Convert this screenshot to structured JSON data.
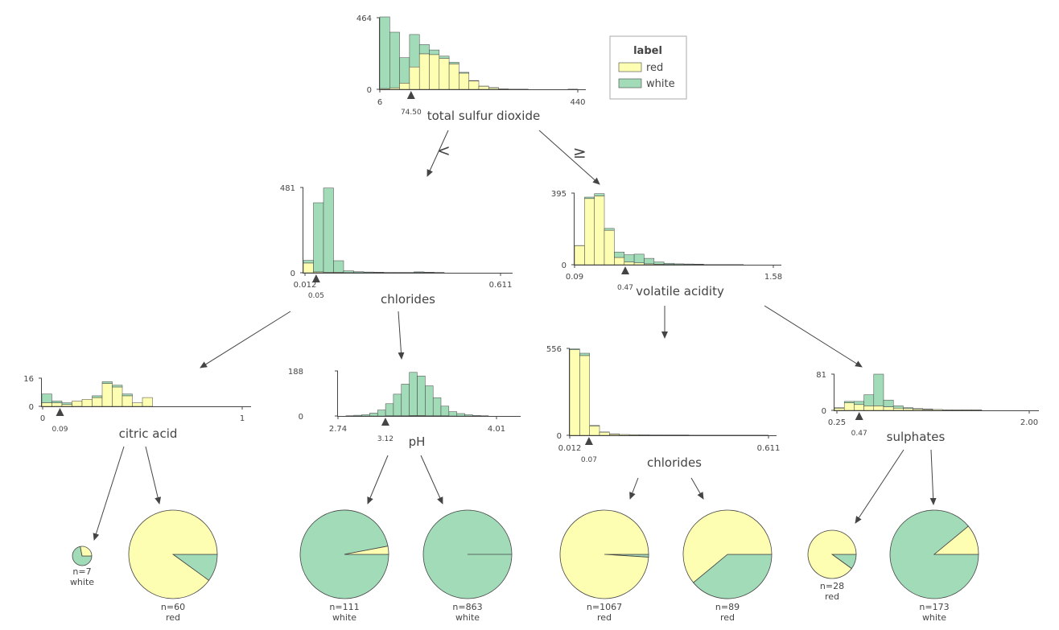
{
  "colors": {
    "red": "#fefeb2",
    "white": "#a2dbb8",
    "stroke": "#444444",
    "axis": "#444444"
  },
  "legend": {
    "title": "label",
    "items": [
      {
        "label": "red",
        "color": "#fefeb2"
      },
      {
        "label": "white",
        "color": "#a2dbb8"
      }
    ]
  },
  "edge_labels": {
    "left": "<",
    "right": "≥"
  },
  "chart_data": {
    "type": "decision-tree",
    "nodes": [
      {
        "id": "root",
        "feature": "total sulfur dioxide",
        "xmin": 6,
        "xmax": 440,
        "xmin_label": "6",
        "xmax_label": "440",
        "ymax": 464,
        "ymax_label": "464",
        "ymin_label": "0",
        "split": 74.5,
        "split_label": "74.50",
        "bins_white": [
          464,
          360,
          165,
          210,
          60,
          30,
          15,
          10,
          5,
          2,
          1,
          1,
          0,
          0,
          0,
          0,
          0,
          0,
          0,
          0
        ],
        "bins_red": [
          5,
          10,
          40,
          145,
          230,
          225,
          200,
          165,
          105,
          55,
          20,
          10,
          3,
          1,
          1,
          0,
          0,
          0,
          0,
          1
        ]
      },
      {
        "id": "l",
        "feature": "chlorides",
        "xmin": 0.012,
        "xmax": 0.611,
        "xmin_label": "0.012",
        "xmax_label": "0.611",
        "ymax": 481,
        "ymax_label": "481",
        "ymin_label": "0",
        "split": 0.05,
        "split_label": "0.05",
        "bins_white": [
          15,
          390,
          475,
          65,
          10,
          5,
          3,
          2,
          1,
          1,
          1,
          3,
          2,
          1,
          0,
          0,
          0,
          0,
          0,
          0
        ],
        "bins_red": [
          55,
          5,
          3,
          3,
          1,
          1,
          1,
          1,
          1,
          1,
          1,
          2,
          1,
          1,
          0,
          0,
          0,
          0,
          0,
          0
        ]
      },
      {
        "id": "r",
        "feature": "volatile acidity",
        "xmin": 0.09,
        "xmax": 1.58,
        "xmin_label": "0.09",
        "xmax_label": "1.58",
        "ymax": 395,
        "ymax_label": "395",
        "ymin_label": "0",
        "split": 0.47,
        "split_label": "0.47",
        "bins_white": [
          1,
          8,
          12,
          10,
          30,
          40,
          48,
          30,
          12,
          6,
          4,
          3,
          2,
          1,
          1,
          1,
          1,
          0,
          0,
          0
        ],
        "bins_red": [
          105,
          365,
          380,
          190,
          40,
          15,
          10,
          5,
          3,
          2,
          1,
          1,
          1,
          0,
          0,
          0,
          0,
          0,
          0,
          0
        ]
      },
      {
        "id": "ll",
        "feature": "citric acid",
        "xmin": 0,
        "xmax": 1,
        "xmin_label": "0",
        "xmax_label": "1",
        "ymax": 16,
        "ymax_label": "16",
        "ymin_label": "0",
        "split": 0.09,
        "split_label": "0.09",
        "bins_white": [
          5,
          1,
          1,
          0,
          0,
          1,
          1,
          1,
          1,
          0,
          0,
          0,
          0,
          0,
          0,
          0,
          0,
          0,
          0,
          0
        ],
        "bins_red": [
          2,
          2,
          1,
          3,
          4,
          5,
          13,
          11,
          6,
          2,
          5,
          0,
          0,
          0,
          0,
          0,
          0,
          0,
          0,
          0
        ]
      },
      {
        "id": "lr",
        "feature": "pH",
        "xmin": 2.74,
        "xmax": 4.01,
        "xmin_label": "2.74",
        "xmax_label": "4.01",
        "ymax": 188,
        "ymax_label": "188",
        "ymin_label": "0",
        "split": 3.12,
        "split_label": "3.12",
        "bins_white": [
          0,
          1,
          3,
          5,
          12,
          25,
          50,
          90,
          132,
          180,
          165,
          125,
          75,
          40,
          18,
          10,
          5,
          2,
          1,
          0
        ],
        "bins_red": [
          0,
          0,
          0,
          0,
          0,
          0,
          1,
          1,
          1,
          2,
          2,
          1,
          1,
          1,
          0,
          0,
          0,
          0,
          0,
          0
        ]
      },
      {
        "id": "rl",
        "feature": "chlorides",
        "xmin": 0.012,
        "xmax": 0.611,
        "xmin_label": "0.012",
        "xmax_label": "0.611",
        "ymax": 556,
        "ymax_label": "556",
        "ymin_label": "0",
        "split": 0.07,
        "split_label": "0.07",
        "bins_white": [
          5,
          15,
          3,
          1,
          1,
          0,
          0,
          0,
          0,
          0,
          0,
          0,
          0,
          0,
          0,
          0,
          0,
          0,
          0,
          0
        ],
        "bins_red": [
          548,
          510,
          60,
          20,
          8,
          5,
          4,
          3,
          2,
          2,
          2,
          2,
          1,
          1,
          1,
          1,
          1,
          1,
          1,
          1
        ]
      },
      {
        "id": "rr",
        "feature": "sulphates",
        "xmin": 0.25,
        "xmax": 2.0,
        "xmin_label": "0.25",
        "xmax_label": "2.00",
        "ymax": 81,
        "ymax_label": "81",
        "ymin_label": "0",
        "split": 0.47,
        "split_label": "0.47",
        "bins_white": [
          1,
          3,
          7,
          25,
          71,
          15,
          5,
          2,
          1,
          1,
          0,
          0,
          0,
          0,
          0,
          0,
          0,
          0,
          0,
          0
        ],
        "bins_red": [
          5,
          17,
          13,
          10,
          10,
          8,
          5,
          4,
          3,
          2,
          2,
          1,
          1,
          1,
          1,
          0,
          0,
          0,
          0,
          0
        ]
      }
    ],
    "leaves": [
      {
        "id": "leaf1",
        "n": 7,
        "n_label": "n=7",
        "class": "white",
        "frac_red": 0.28
      },
      {
        "id": "leaf2",
        "n": 60,
        "n_label": "n=60",
        "class": "red",
        "frac_red": 0.9
      },
      {
        "id": "leaf3",
        "n": 111,
        "n_label": "n=111",
        "class": "white",
        "frac_red": 0.03
      },
      {
        "id": "leaf4",
        "n": 863,
        "n_label": "n=863",
        "class": "white",
        "frac_red": 0.0
      },
      {
        "id": "leaf5",
        "n": 1067,
        "n_label": "n=1067",
        "class": "red",
        "frac_red": 0.99
      },
      {
        "id": "leaf6",
        "n": 89,
        "n_label": "n=89",
        "class": "red",
        "frac_red": 0.61
      },
      {
        "id": "leaf7",
        "n": 28,
        "n_label": "n=28",
        "class": "red",
        "frac_red": 0.9
      },
      {
        "id": "leaf8",
        "n": 173,
        "n_label": "n=173",
        "class": "white",
        "frac_red": 0.11
      }
    ]
  }
}
